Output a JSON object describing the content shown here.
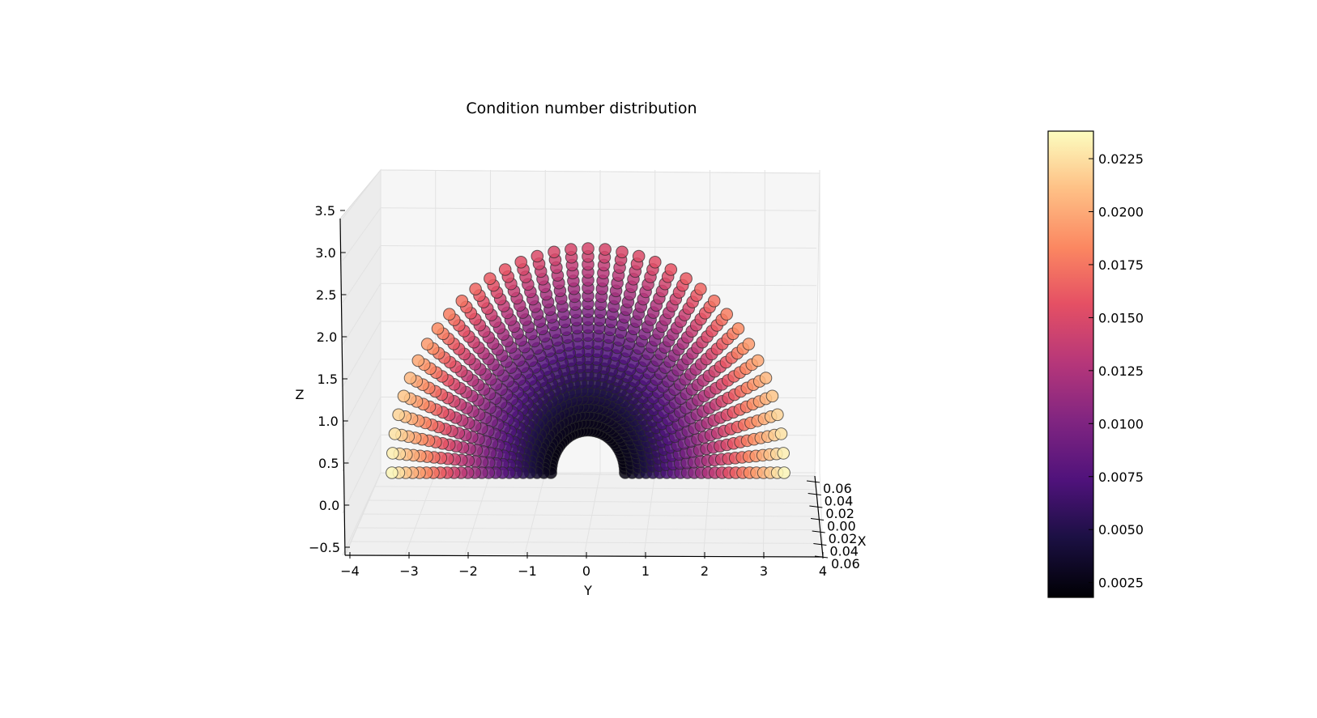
{
  "chart_data": {
    "type": "scatter",
    "projection": "3d",
    "title": "Condition number distribution",
    "xlabel": "X",
    "ylabel": "Y",
    "zlabel": "Z",
    "x_ticks": [
      "0.06",
      "0.04",
      "0.02",
      "0.00",
      "0.02",
      "0.04",
      "0.06"
    ],
    "y_ticks": [
      "−4",
      "−3",
      "−2",
      "−1",
      "0",
      "1",
      "2",
      "3",
      "4"
    ],
    "z_ticks": [
      "−0.5",
      "0.0",
      "0.5",
      "1.0",
      "1.5",
      "2.0",
      "2.5",
      "3.0",
      "3.5"
    ],
    "xlim": [
      -0.06,
      0.06
    ],
    "ylim": [
      -4,
      4
    ],
    "zlim": [
      -0.5,
      3.5
    ],
    "grid": true,
    "colormap": "magma",
    "colorbar": {
      "ticks": [
        "0.0025",
        "0.0050",
        "0.0075",
        "0.0100",
        "0.0125",
        "0.0150",
        "0.0175",
        "0.0200",
        "0.0225"
      ],
      "range": [
        0.0018,
        0.0238
      ],
      "placement": "right"
    },
    "series": [
      {
        "shape": "semi-annulus of points in the Y-Z plane (arch)",
        "center": [
          0,
          0,
          0.5
        ],
        "inner_radius": 0.55,
        "outer_radius": 2.9,
        "radial_rings": 24,
        "angular_rays": 37,
        "angle_range_deg": [
          0,
          180
        ],
        "value_range": [
          0.0025,
          0.0235
        ],
        "value_trend": "lowest near the inner hole; highest at the outer ends near the base; mid-range at the top of the arch"
      }
    ]
  }
}
